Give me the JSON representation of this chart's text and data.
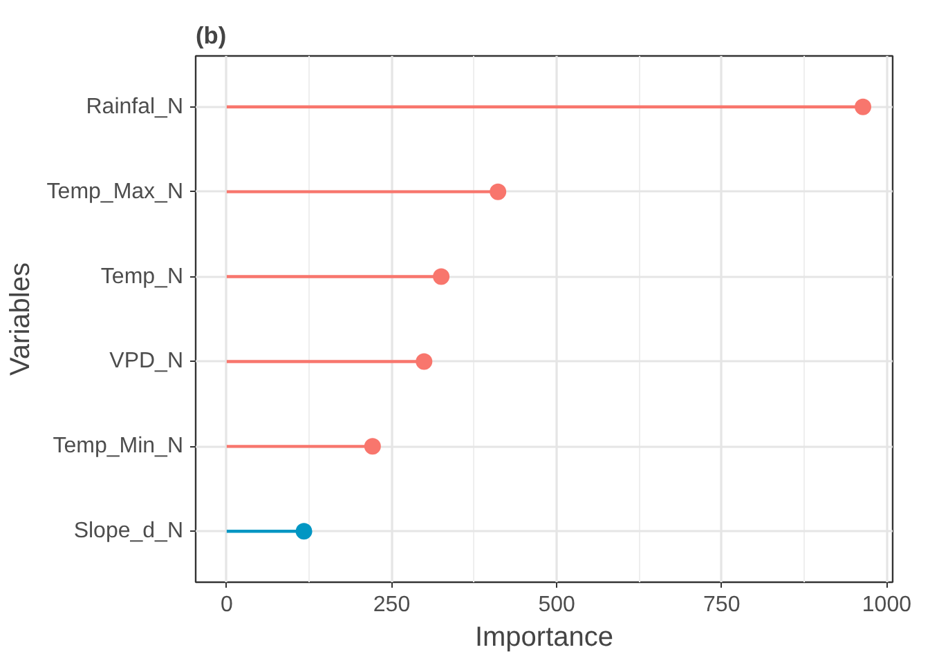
{
  "chart_data": {
    "type": "lollipop",
    "title": "(b)",
    "xlabel": "Importance",
    "ylabel": "Variables",
    "orientation": "horizontal",
    "categories": [
      "Rainfal_N",
      "Temp_Max_N",
      "Temp_N",
      "VPD_N",
      "Temp_Min_N",
      "Slope_d_N"
    ],
    "values": [
      964,
      411,
      325,
      299,
      221,
      117
    ],
    "colors": [
      "#f8766d",
      "#f8766d",
      "#f8766d",
      "#f8766d",
      "#f8766d",
      "#0096c3"
    ],
    "xlim": [
      -47,
      1009
    ],
    "xticks": [
      0,
      250,
      500,
      750,
      1000
    ],
    "grid": true,
    "marker": "circle"
  }
}
